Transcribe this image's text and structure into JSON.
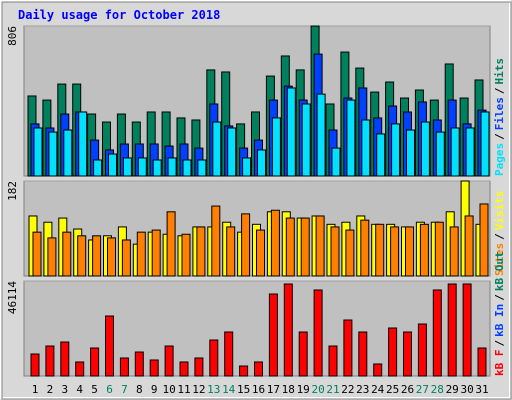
{
  "chart_data": [
    {
      "type": "bar",
      "title": "Daily usage for October 2018",
      "ylim": [
        0,
        806
      ],
      "yticks": [
        806
      ],
      "legend_separator": "/",
      "series": [
        {
          "name": "Hits",
          "color": "#00805c",
          "values": [
            430,
            408,
            494,
            494,
            333,
            290,
            333,
            290,
            344,
            344,
            312,
            301,
            570,
            559,
            280,
            344,
            537,
            645,
            570,
            806,
            387,
            666,
            580,
            451,
            505,
            419,
            462,
            408,
            602,
            419,
            516
          ]
        },
        {
          "name": "Files",
          "color": "#0040ff",
          "values": [
            280,
            258,
            333,
            344,
            193,
            140,
            172,
            172,
            172,
            161,
            172,
            150,
            387,
            269,
            150,
            193,
            408,
            483,
            408,
            655,
            247,
            419,
            473,
            312,
            376,
            344,
            398,
            301,
            408,
            280,
            354
          ]
        },
        {
          "name": "Pages",
          "color": "#00e0ff",
          "values": [
            258,
            236,
            247,
            344,
            86,
            118,
            97,
            97,
            86,
            97,
            86,
            86,
            290,
            258,
            97,
            140,
            312,
            473,
            387,
            440,
            150,
            408,
            301,
            226,
            280,
            247,
            290,
            236,
            258,
            258,
            344
          ]
        }
      ]
    },
    {
      "type": "bar",
      "ylim": [
        0,
        182
      ],
      "yticks": [
        182
      ],
      "legend_separator": "/",
      "series": [
        {
          "name": "Visits",
          "color": "#ffff00",
          "values": [
            115,
            103,
            111,
            90,
            69,
            77,
            94,
            61,
            84,
            80,
            77,
            94,
            94,
            103,
            84,
            99,
            123,
            123,
            111,
            115,
            99,
            103,
            115,
            99,
            99,
            94,
            103,
            103,
            123,
            182,
            99
          ]
        },
        {
          "name": "Sites",
          "color": "#ff8000",
          "values": [
            84,
            73,
            84,
            77,
            77,
            73,
            69,
            84,
            88,
            123,
            80,
            94,
            134,
            94,
            119,
            88,
            126,
            111,
            111,
            115,
            94,
            88,
            107,
            99,
            94,
            94,
            99,
            103,
            94,
            115,
            138
          ]
        }
      ]
    },
    {
      "type": "bar",
      "ylim": [
        0,
        46114
      ],
      "yticks": [
        46114
      ],
      "legend_separator": "/",
      "legend_extra": [
        {
          "name": "kB In",
          "color": "#0040ff"
        },
        {
          "name": "kB Out",
          "color": "#00805c"
        }
      ],
      "series": [
        {
          "name": "kB F",
          "color": "#ff0000",
          "values": [
            10680,
            14560,
            16500,
            6800,
            13590,
            29120,
            8740,
            11650,
            7770,
            14560,
            6800,
            8740,
            17470,
            21360,
            4850,
            6800,
            39800,
            44660,
            21360,
            41750,
            14560,
            27180,
            21360,
            5830,
            23300,
            21360,
            25240,
            41750,
            44660,
            44660,
            13590
          ]
        }
      ],
      "categories": [
        "1",
        "2",
        "3",
        "4",
        "5",
        "6",
        "7",
        "8",
        "9",
        "10",
        "11",
        "12",
        "13",
        "14",
        "15",
        "16",
        "17",
        "18",
        "19",
        "20",
        "21",
        "22",
        "23",
        "24",
        "25",
        "26",
        "27",
        "28",
        "29",
        "30",
        "31"
      ],
      "category_colors": [
        "#000000",
        "#000000",
        "#000000",
        "#000000",
        "#000000",
        "#00805c",
        "#00805c",
        "#000000",
        "#000000",
        "#000000",
        "#000000",
        "#000000",
        "#00805c",
        "#00805c",
        "#000000",
        "#000000",
        "#000000",
        "#000000",
        "#000000",
        "#00805c",
        "#00805c",
        "#000000",
        "#000000",
        "#000000",
        "#000000",
        "#000000",
        "#00805c",
        "#00805c",
        "#000000",
        "#000000",
        "#000000"
      ]
    }
  ]
}
